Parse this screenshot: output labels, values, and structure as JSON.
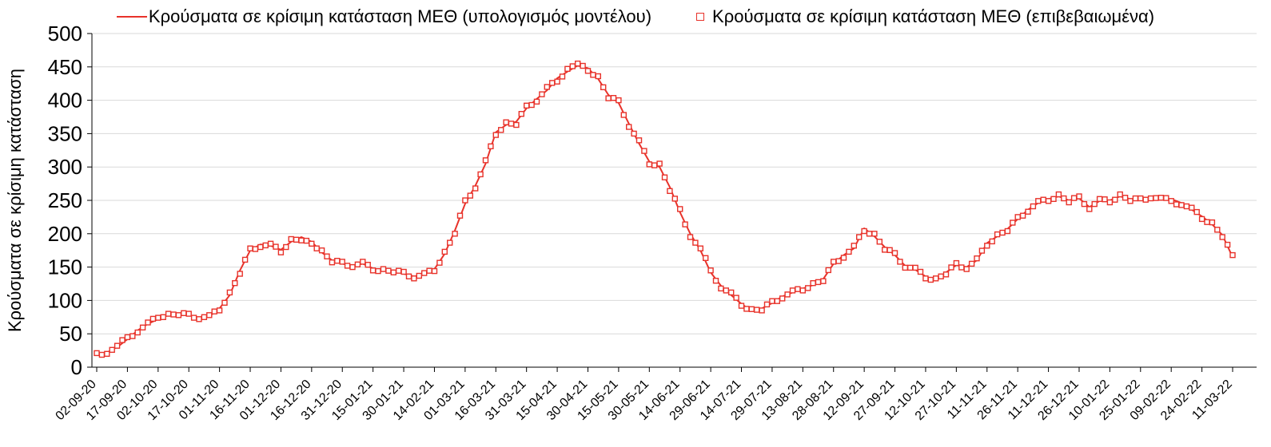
{
  "colors": {
    "series_red": "#e8322a",
    "gridline": "#d9d9d9",
    "axis": "#000000",
    "text": "#000000"
  },
  "chart_data": {
    "type": "line",
    "title": "",
    "ylabel": "Κρούσματα σε κρίσιμη κατάσταση",
    "ylim": [
      0,
      500
    ],
    "y_ticks": [
      0,
      50,
      100,
      150,
      200,
      250,
      300,
      350,
      400,
      450,
      500
    ],
    "grid": "horizontal",
    "legend_position": "top",
    "x_tick_interval_days": 15,
    "sample_interval_days": 5,
    "x_tick_labels": [
      "02-09-20",
      "17-09-20",
      "02-10-20",
      "17-10-20",
      "01-11-20",
      "16-11-20",
      "01-12-20",
      "16-12-20",
      "31-12-20",
      "15-01-21",
      "30-01-21",
      "14-02-21",
      "01-03-21",
      "16-03-21",
      "31-03-21",
      "15-04-21",
      "30-04-21",
      "15-05-21",
      "30-05-21",
      "14-06-21",
      "29-06-21",
      "14-07-21",
      "29-07-21",
      "13-08-21",
      "28-08-21",
      "12-09-21",
      "27-09-21",
      "12-10-21",
      "27-10-21",
      "11-11-21",
      "26-11-21",
      "11-12-21",
      "26-12-21",
      "10-01-22",
      "25-01-22",
      "09-02-22",
      "24-02-22",
      "11-03-22"
    ],
    "series": [
      {
        "name": "Κρούσματα σε κρίσιμη κατάσταση ΜΕΘ (υπολογισμός μοντέλου)",
        "style": "line",
        "values": [
          20,
          22,
          30,
          42,
          55,
          65,
          72,
          78,
          80,
          78,
          74,
          76,
          88,
          108,
          145,
          175,
          184,
          182,
          176,
          188,
          195,
          188,
          172,
          160,
          155,
          152,
          155,
          148,
          144,
          145,
          140,
          136,
          139,
          147,
          170,
          205,
          245,
          272,
          305,
          352,
          363,
          368,
          388,
          402,
          415,
          433,
          443,
          452,
          448,
          432,
          408,
          396,
          365,
          335,
          308,
          300,
          270,
          232,
          200,
          175,
          142,
          122,
          108,
          95,
          84,
          88,
          96,
          106,
          112,
          118,
          123,
          132,
          155,
          168,
          178,
          208,
          196,
          180,
          168,
          152,
          146,
          136,
          130,
          142,
          153,
          150,
          160,
          186,
          196,
          207,
          222,
          236,
          246,
          252,
          256,
          250,
          253,
          240,
          249,
          250,
          256,
          252,
          250,
          256,
          251,
          252,
          246,
          236,
          226,
          214,
          198,
          165
        ]
      },
      {
        "name": "Κρούσματα σε κρίσιμη κατάσταση ΜΕΘ (επιβεβαιωμένα)",
        "style": "open-square",
        "values": [
          21,
          20,
          32,
          45,
          52,
          67,
          74,
          80,
          78,
          80,
          72,
          78,
          85,
          112,
          140,
          178,
          180,
          185,
          172,
          192,
          190,
          185,
          175,
          157,
          158,
          150,
          158,
          145,
          147,
          142,
          143,
          133,
          141,
          144,
          173,
          200,
          250,
          268,
          310,
          348,
          367,
          363,
          392,
          398,
          420,
          428,
          447,
          455,
          444,
          436,
          403,
          400,
          360,
          340,
          304,
          305,
          264,
          237,
          195,
          178,
          145,
          118,
          112,
          92,
          87,
          85,
          99,
          103,
          115,
          115,
          126,
          129,
          158,
          164,
          182,
          204,
          200,
          176,
          171,
          149,
          149,
          133,
          133,
          139,
          156,
          147,
          163,
          182,
          199,
          204,
          225,
          233,
          249,
          249,
          259,
          247,
          256,
          237,
          252,
          247,
          259,
          249,
          253,
          253,
          254,
          249,
          243,
          239,
          222,
          217,
          195,
          168
        ]
      }
    ]
  }
}
